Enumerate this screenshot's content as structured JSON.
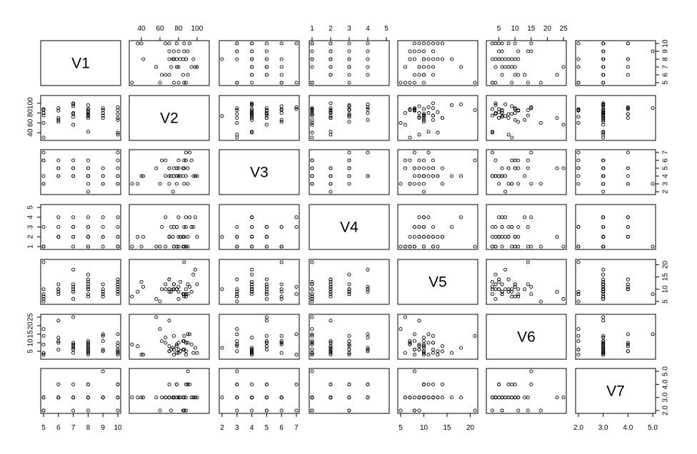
{
  "chart_data": {
    "type": "scatter-matrix",
    "variables": [
      "V1",
      "V2",
      "V3",
      "V4",
      "V5",
      "V6",
      "V7"
    ],
    "axes": {
      "V1": {
        "ticks": [
          5,
          6,
          7,
          8,
          9,
          10
        ],
        "tick_labels": [
          "5",
          "6",
          "7",
          "8",
          "9",
          "10"
        ],
        "range": [
          5,
          10
        ]
      },
      "V2": {
        "ticks": [
          40,
          60,
          80,
          100
        ],
        "tick_labels": [
          "40",
          "60",
          "80",
          "100"
        ],
        "range": [
          30,
          110
        ]
      },
      "V3": {
        "ticks": [
          2,
          3,
          4,
          5,
          6,
          7
        ],
        "tick_labels": [
          "2",
          "3",
          "4",
          "5",
          "6",
          "7"
        ],
        "range": [
          2,
          7
        ]
      },
      "V4": {
        "ticks": [
          1,
          2,
          3,
          4,
          5
        ],
        "tick_labels": [
          "1",
          "2",
          "3",
          "4",
          "5"
        ],
        "range": [
          1,
          5
        ]
      },
      "V5": {
        "ticks": [
          5,
          10,
          15,
          20
        ],
        "tick_labels": [
          "5",
          "10",
          "15",
          "20"
        ],
        "range": [
          5,
          21
        ]
      },
      "V6": {
        "ticks": [
          5,
          10,
          15,
          20,
          25
        ],
        "tick_labels": [
          "5",
          "10",
          "15",
          "20",
          "25"
        ],
        "range": [
          2,
          25
        ]
      },
      "V7": {
        "ticks": [
          2.0,
          3.0,
          4.0,
          5.0
        ],
        "tick_labels": [
          "2.0",
          "3.0",
          "4.0",
          "5.0"
        ],
        "range": [
          2,
          5
        ]
      }
    },
    "tick_positions": {
      "top": [
        "V2",
        "V4",
        "V6"
      ],
      "bottom": [
        "V1",
        "V3",
        "V5",
        "V7"
      ],
      "left": [
        "V2",
        "V4",
        "V6"
      ],
      "right": [
        "V1",
        "V3",
        "V5",
        "V7"
      ]
    },
    "rows": [
      [
        5,
        30,
        3,
        1,
        7,
        9,
        3
      ],
      [
        5,
        80,
        6,
        1,
        6,
        4,
        3
      ],
      [
        5,
        88,
        7,
        3,
        8,
        3,
        2
      ],
      [
        5,
        75,
        4,
        1,
        10,
        3,
        3
      ],
      [
        5,
        60,
        3,
        1,
        5,
        18,
        2
      ],
      [
        5,
        86,
        6,
        1,
        21,
        14,
        2
      ],
      [
        6,
        85,
        4,
        2,
        8,
        6,
        3
      ],
      [
        6,
        90,
        5,
        2,
        12,
        10,
        4
      ],
      [
        6,
        70,
        5,
        2,
        9,
        23,
        3
      ],
      [
        6,
        62,
        6,
        3,
        10,
        11,
        3
      ],
      [
        6,
        66,
        4,
        4,
        10,
        13,
        3
      ],
      [
        7,
        100,
        4,
        2,
        12,
        4,
        3
      ],
      [
        7,
        78,
        5,
        3,
        10,
        8,
        4
      ],
      [
        7,
        94,
        6,
        3,
        9,
        9,
        3
      ],
      [
        7,
        98,
        4,
        4,
        18,
        7,
        3
      ],
      [
        7,
        80,
        5,
        2,
        11,
        10,
        3
      ],
      [
        7,
        56,
        5,
        1,
        6,
        25,
        3
      ],
      [
        7,
        72,
        4,
        3,
        9,
        6,
        2
      ],
      [
        8,
        82,
        4,
        2,
        13,
        5,
        3
      ],
      [
        8,
        78,
        3,
        3,
        10,
        9,
        4
      ],
      [
        8,
        75,
        4,
        1,
        12,
        6,
        3
      ],
      [
        8,
        96,
        4,
        3,
        16,
        4,
        3
      ],
      [
        8,
        85,
        5,
        1,
        8,
        11,
        2
      ],
      [
        8,
        70,
        5,
        2,
        14,
        8,
        3
      ],
      [
        8,
        74,
        2,
        2,
        10,
        7,
        3
      ],
      [
        8,
        88,
        6,
        1,
        7,
        10,
        3
      ],
      [
        8,
        88,
        4,
        4,
        10,
        5,
        4
      ],
      [
        8,
        42,
        4,
        2,
        11,
        3,
        3
      ],
      [
        9,
        86,
        3,
        2,
        7,
        11,
        3
      ],
      [
        9,
        80,
        4,
        4,
        9,
        6,
        3
      ],
      [
        9,
        75,
        5,
        3,
        12,
        14,
        3
      ],
      [
        9,
        70,
        4,
        2,
        10,
        5,
        3
      ],
      [
        9,
        90,
        3,
        1,
        8,
        15,
        5
      ],
      [
        10,
        78,
        4,
        1,
        10,
        4,
        3
      ],
      [
        10,
        86,
        5,
        3,
        8,
        6,
        2
      ],
      [
        10,
        70,
        3,
        2,
        14,
        5,
        4
      ],
      [
        10,
        66,
        6,
        1,
        12,
        10,
        3
      ],
      [
        10,
        36,
        3,
        2,
        9,
        8,
        3
      ],
      [
        10,
        40,
        4,
        1,
        13,
        3,
        3
      ],
      [
        10,
        92,
        7,
        4,
        11,
        15,
        4
      ]
    ]
  }
}
